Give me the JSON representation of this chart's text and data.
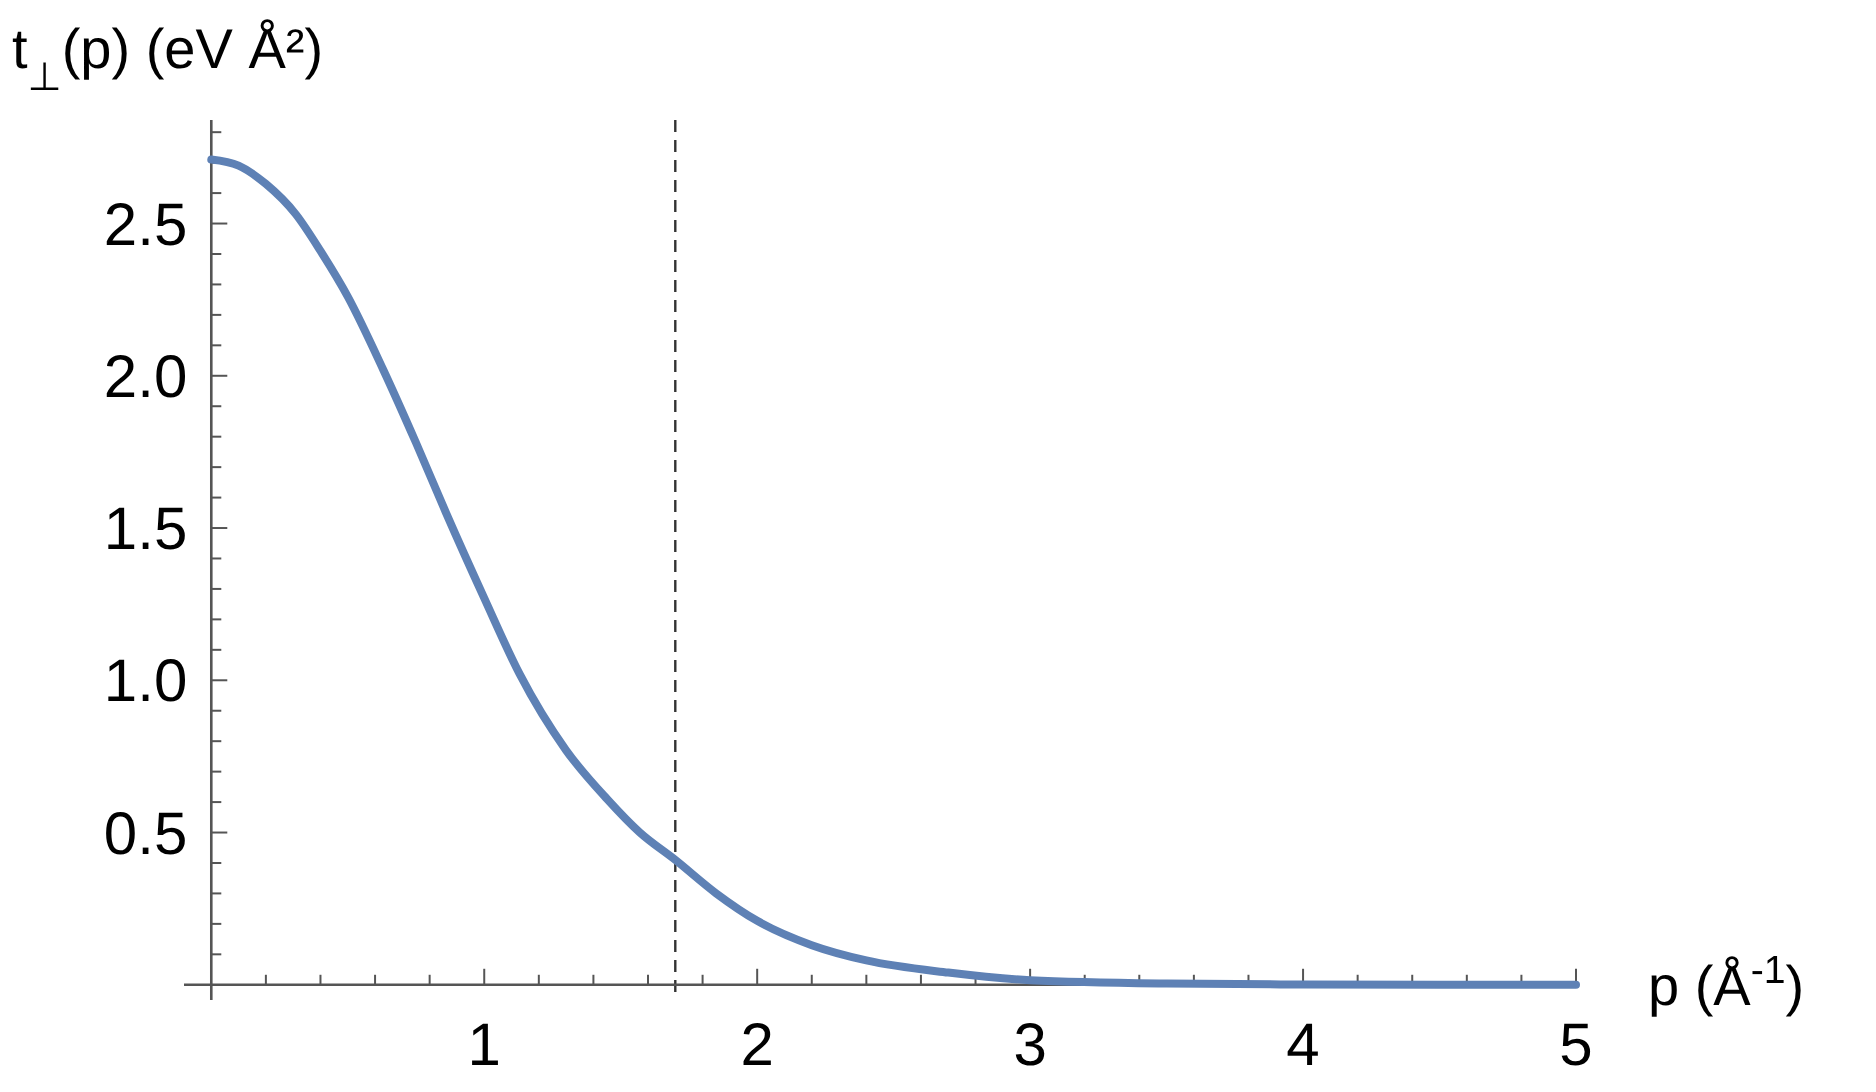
{
  "chart_data": {
    "type": "line",
    "xlabel": "p (Å$^{-1}$)",
    "ylabel": "t$_{⊥}$(p) (eV Å²)",
    "xlim": [
      -0.1,
      5
    ],
    "ylim": [
      -0.05,
      2.84
    ],
    "xticks": [
      {
        "value": 0.2,
        "label": null
      },
      {
        "value": 0.4,
        "label": null
      },
      {
        "value": 0.6,
        "label": null
      },
      {
        "value": 0.8,
        "label": null
      },
      1,
      {
        "value": 1.2,
        "label": null
      },
      {
        "value": 1.4,
        "label": null
      },
      {
        "value": 1.6,
        "label": null
      },
      {
        "value": 1.8,
        "label": null
      },
      2,
      {
        "value": 2.2,
        "label": null
      },
      {
        "value": 2.4,
        "label": null
      },
      {
        "value": 2.6,
        "label": null
      },
      {
        "value": 2.8,
        "label": null
      },
      3,
      {
        "value": 3.2,
        "label": null
      },
      {
        "value": 3.4,
        "label": null
      },
      {
        "value": 3.6,
        "label": null
      },
      {
        "value": 3.8,
        "label": null
      },
      4,
      {
        "value": 4.2,
        "label": null
      },
      {
        "value": 4.4,
        "label": null
      },
      {
        "value": 4.6,
        "label": null
      },
      {
        "value": 4.8,
        "label": null
      },
      5
    ],
    "yticks": [
      {
        "value": 0.1,
        "label": null
      },
      {
        "value": 0.2,
        "label": null
      },
      {
        "value": 0.3,
        "label": null
      },
      {
        "value": 0.4,
        "label": null
      },
      {
        "value": 0.5,
        "label": "0.5"
      },
      {
        "value": 0.6,
        "label": null
      },
      {
        "value": 0.7,
        "label": null
      },
      {
        "value": 0.8,
        "label": null
      },
      {
        "value": 0.9,
        "label": null
      },
      {
        "value": 1,
        "label": "1.0"
      },
      {
        "value": 1.1,
        "label": null
      },
      {
        "value": 1.2,
        "label": null
      },
      {
        "value": 1.3,
        "label": null
      },
      {
        "value": 1.4,
        "label": null
      },
      1.5,
      {
        "value": 1.6,
        "label": null
      },
      {
        "value": 1.7,
        "label": null
      },
      {
        "value": 1.8,
        "label": null
      },
      {
        "value": 1.9,
        "label": null
      },
      {
        "value": 2,
        "label": "2.0"
      },
      {
        "value": 2.1,
        "label": null
      },
      {
        "value": 2.2,
        "label": null
      },
      {
        "value": 2.3,
        "label": null
      },
      {
        "value": 2.4,
        "label": null
      },
      2.5,
      {
        "value": 2.6,
        "label": null
      },
      {
        "value": 2.7,
        "label": null
      },
      {
        "value": 2.8,
        "label": null
      }
    ],
    "x": [
      0,
      0.1,
      0.2,
      0.31,
      0.4,
      0.5,
      0.63,
      0.75,
      0.86,
      1.0,
      1.13,
      1.3,
      1.45,
      1.57,
      1.7,
      1.85,
      2.0,
      2.2,
      2.4,
      2.7,
      3.0,
      3.5,
      4.0,
      4.5,
      5.0
    ],
    "series": [
      {
        "color": "#5e81b5",
        "values": [
          2.71,
          2.69,
          2.63,
          2.53,
          2.41,
          2.26,
          2.02,
          1.78,
          1.55,
          1.27,
          1.02,
          0.77,
          0.61,
          0.5,
          0.41,
          0.3,
          0.21,
          0.13,
          0.08,
          0.04,
          0.015,
          0.004,
          0.001,
          0,
          0
        ]
      }
    ],
    "ref_lines": [
      {
        "axis": "x",
        "value": 1.7,
        "color": "#333333",
        "line_style": "dashed"
      }
    ],
    "marker": "none",
    "line_style": "solid"
  }
}
